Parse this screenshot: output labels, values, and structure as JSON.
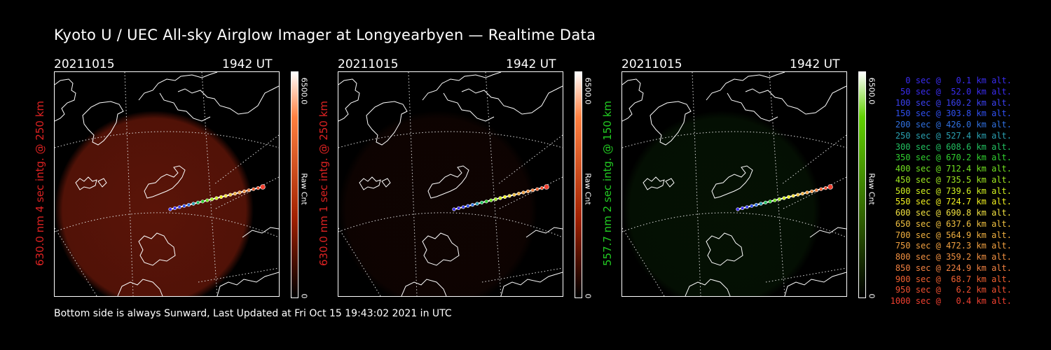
{
  "title": "Kyoto U / UEC All-sky Airglow Imager at Longyearbyen — Realtime Data",
  "footer": "Bottom side is always Sunward, Last Updated at Fri Oct 15 19:43:02 2021 in UTC",
  "panels": [
    {
      "date": "20211015",
      "time": "1942 UT",
      "label": "630.0 nm 4 sec intg. @ 250 km",
      "label_color": "#dd2222",
      "colorbar_max": "6500.0",
      "colorbar_unit": "Raw Cnt",
      "colorbar_min": "0",
      "colorbar_top": "#ff8040",
      "colorbar_mid": "#a02000",
      "glow": "#5a1408",
      "glow_strength": 1.0
    },
    {
      "date": "20211015",
      "time": "1942 UT",
      "label": "630.0 nm 1 sec intg. @ 250 km",
      "label_color": "#dd2222",
      "colorbar_max": "6500.0",
      "colorbar_unit": "Raw Cnt",
      "colorbar_min": "0",
      "colorbar_top": "#ff8040",
      "colorbar_mid": "#a02000",
      "glow": "#2a0a04",
      "glow_strength": 0.35
    },
    {
      "date": "20211015",
      "time": "1942 UT",
      "label": "557.7 nm 2 sec intg. @ 150 km",
      "label_color": "#22cc22",
      "colorbar_max": "6500.0",
      "colorbar_unit": "Raw Cnt",
      "colorbar_min": "0",
      "colorbar_top": "#60d000",
      "colorbar_mid": "#306000",
      "glow": "#0c2a08",
      "glow_strength": 0.4
    }
  ],
  "legend": [
    {
      "text": "   0 sec @   0.1 km alt.",
      "color": "#3a2cf0"
    },
    {
      "text": "  50 sec @  52.0 km alt.",
      "color": "#3a2cf0"
    },
    {
      "text": " 100 sec @ 160.2 km alt.",
      "color": "#3a40f0"
    },
    {
      "text": " 150 sec @ 303.8 km alt.",
      "color": "#3050f0"
    },
    {
      "text": " 200 sec @ 426.0 km alt.",
      "color": "#3070e0"
    },
    {
      "text": " 250 sec @ 527.4 km alt.",
      "color": "#2aa0b0"
    },
    {
      "text": " 300 sec @ 608.6 km alt.",
      "color": "#22c060"
    },
    {
      "text": " 350 sec @ 670.2 km alt.",
      "color": "#30d030"
    },
    {
      "text": " 400 sec @ 712.4 km alt.",
      "color": "#70e020"
    },
    {
      "text": " 450 sec @ 735.5 km alt.",
      "color": "#a0e820"
    },
    {
      "text": " 500 sec @ 739.6 km alt.",
      "color": "#d0f020"
    },
    {
      "text": " 550 sec @ 724.7 km alt.",
      "color": "#f0f020"
    },
    {
      "text": " 600 sec @ 690.8 km alt.",
      "color": "#f0e040"
    },
    {
      "text": " 650 sec @ 637.6 km alt.",
      "color": "#f0c040"
    },
    {
      "text": " 700 sec @ 564.9 km alt.",
      "color": "#f0b040"
    },
    {
      "text": " 750 sec @ 472.3 km alt.",
      "color": "#f0a040"
    },
    {
      "text": " 800 sec @ 359.2 km alt.",
      "color": "#f09040"
    },
    {
      "text": " 850 sec @ 224.9 km alt.",
      "color": "#f08040"
    },
    {
      "text": " 900 sec @  68.7 km alt.",
      "color": "#f06030"
    },
    {
      "text": " 950 sec @   6.2 km alt.",
      "color": "#f05030"
    },
    {
      "text": "1000 sec @   0.4 km alt.",
      "color": "#f04030"
    }
  ]
}
